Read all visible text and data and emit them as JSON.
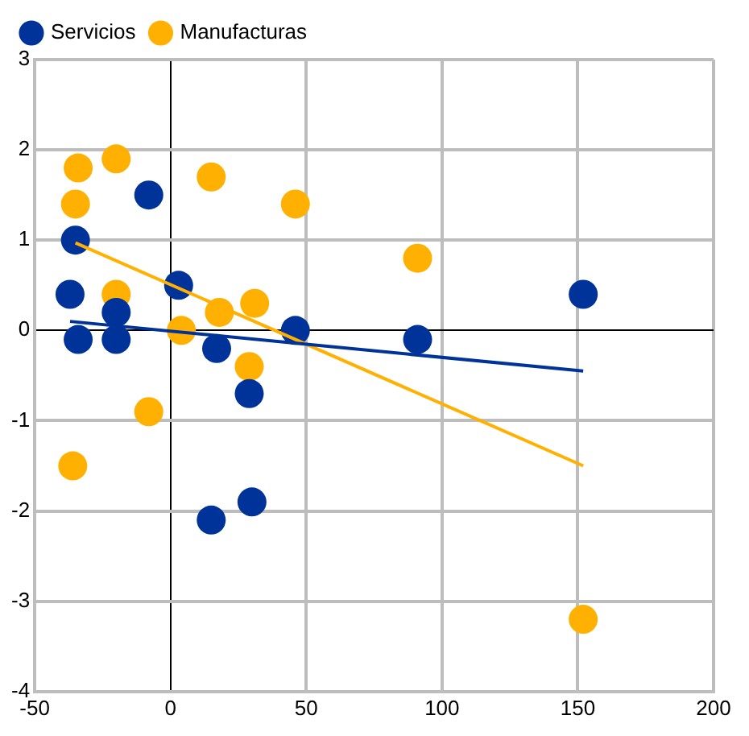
{
  "chart_data": {
    "type": "scatter",
    "xlim": [
      -50,
      200
    ],
    "xticks": [
      -50,
      0,
      50,
      100,
      150,
      200
    ],
    "ylim": [
      -4,
      3
    ],
    "yticks": [
      -4,
      -3,
      -2,
      -1,
      0,
      1,
      2,
      3
    ],
    "grid": true,
    "legend": "top left",
    "marker": "circle",
    "series": [
      {
        "name": "Servicios",
        "color": "#003399",
        "x": [
          -35,
          -37,
          -34,
          -20,
          -20,
          -8,
          3,
          17,
          15,
          30,
          29,
          46,
          91,
          152
        ],
        "values": [
          1.0,
          0.4,
          -0.1,
          0.2,
          -0.1,
          1.5,
          0.5,
          -0.2,
          -2.1,
          -1.9,
          -0.7,
          0.0,
          -0.1,
          0.4
        ]
      },
      {
        "name": "Manufacturas",
        "color": "#ffb000",
        "x": [
          -34,
          -35,
          -20,
          -20,
          -36,
          -8,
          4,
          15,
          18,
          31,
          29,
          46,
          91,
          152
        ],
        "values": [
          1.8,
          1.4,
          1.9,
          0.4,
          -1.5,
          -0.9,
          0.0,
          1.7,
          0.2,
          0.3,
          -0.4,
          1.4,
          0.8,
          -3.2
        ]
      },
      {
        "type": "line",
        "marker": "none",
        "color": "#003399",
        "x": [
          -37,
          152
        ],
        "values": [
          0.1,
          -0.45
        ]
      },
      {
        "type": "line",
        "marker": "none",
        "color": "#ffb000",
        "x": [
          -35,
          152
        ],
        "values": [
          0.97,
          -1.5
        ]
      }
    ]
  }
}
